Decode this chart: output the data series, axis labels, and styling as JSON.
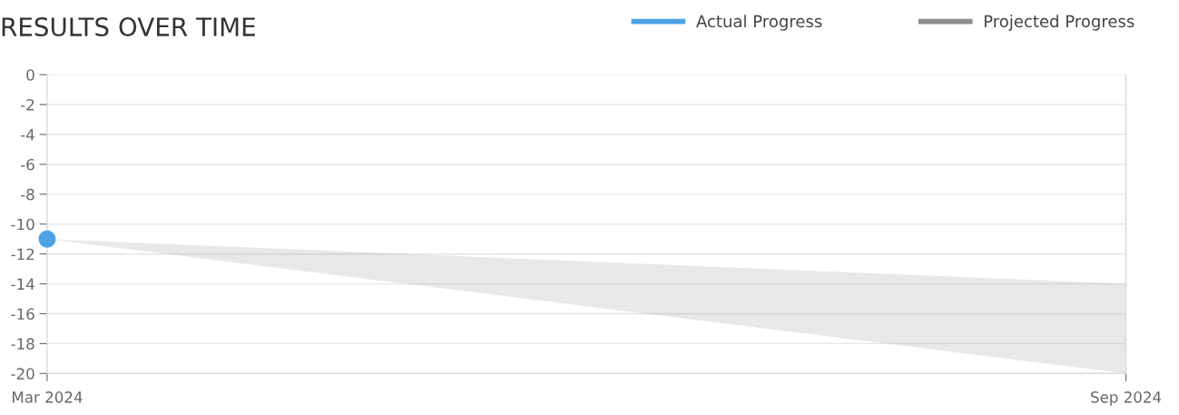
{
  "chart_data": {
    "type": "line",
    "title": "RESULTS OVER TIME",
    "xlim": [
      "2024-03",
      "2024-09"
    ],
    "xticks": [
      {
        "value": "2024-03",
        "label": "Mar 2024"
      },
      {
        "value": "2024-09",
        "label": "Sep 2024"
      }
    ],
    "ylim": [
      -20,
      0
    ],
    "yticks": [
      -20,
      -18,
      -16,
      -14,
      -12,
      -10,
      -8,
      -6,
      -4,
      -2,
      0
    ],
    "grid": "y",
    "legend": "top right",
    "series": [
      {
        "name": "Actual Progress",
        "type": "scatter",
        "marker": "circle",
        "color": "#4da3e6",
        "x": [
          "2024-03"
        ],
        "values": [
          -11
        ]
      },
      {
        "name": "Projected Progress",
        "color": "#8c8c8c",
        "x": [
          "2024-03",
          "2024-09"
        ],
        "values": [
          null,
          null
        ],
        "lower": [
          -11,
          -20
        ],
        "upper": [
          -11,
          -14
        ]
      }
    ]
  }
}
